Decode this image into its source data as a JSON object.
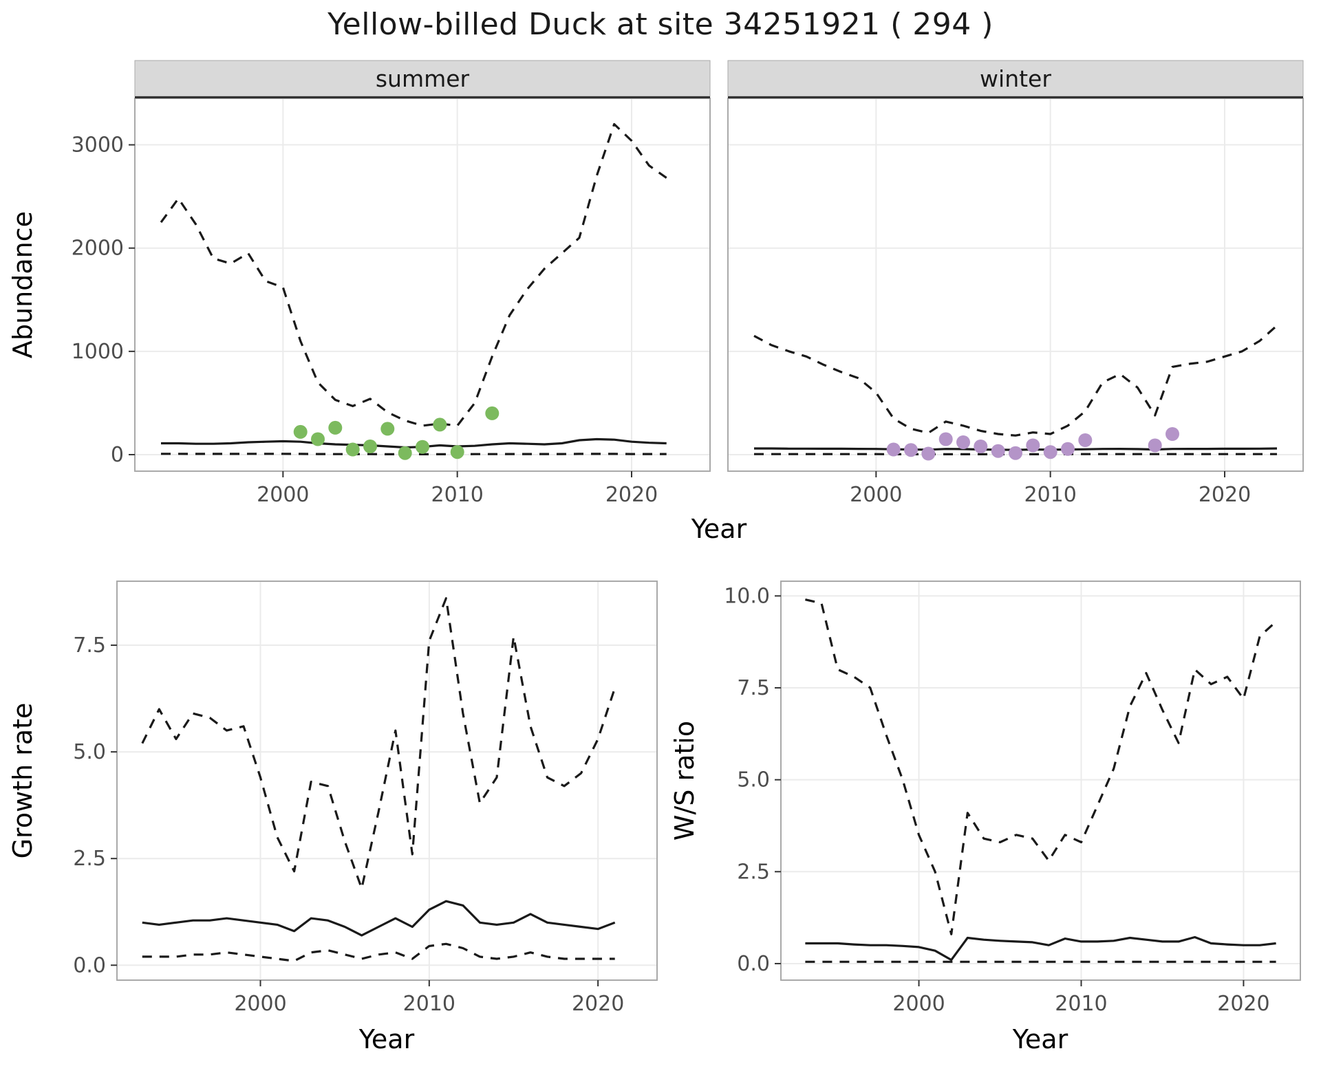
{
  "title": "Yellow-billed Duck at site 34251921 ( 294 )",
  "colors": {
    "line": "#1a1a1a",
    "grid": "#ebebeb",
    "panel_border": "#a9a9a9",
    "strip_bg": "#d9d9d9",
    "strip_border": "#333333",
    "axis_text": "#4d4d4d",
    "tick_mark": "#333333",
    "summer_points": "#7cba5e",
    "winter_points": "#b494c8"
  },
  "facet_row": {
    "xlabel": "Year",
    "ylabel": "Abundance"
  },
  "chart_data": [
    {
      "id": "abundance-summer",
      "type": "line",
      "facet_label": "summer",
      "xlabel": "Year",
      "ylabel": "Abundance",
      "xlim": [
        1991.5,
        2024.5
      ],
      "ylim": [
        -160,
        3450
      ],
      "xticks": [
        2000,
        2010,
        2020
      ],
      "xtick_labels": [
        "2000",
        "2010",
        "2020"
      ],
      "yticks": [
        0,
        1000,
        2000,
        3000
      ],
      "ytick_labels": [
        "0",
        "1000",
        "2000",
        "3000"
      ],
      "x": [
        1993,
        1994,
        1995,
        1996,
        1997,
        1998,
        1999,
        2000,
        2001,
        2002,
        2003,
        2004,
        2005,
        2006,
        2007,
        2008,
        2009,
        2010,
        2011,
        2012,
        2013,
        2014,
        2015,
        2016,
        2017,
        2018,
        2019,
        2020,
        2021,
        2022
      ],
      "series": [
        {
          "name": "upper-credible",
          "style": "dashed",
          "values": [
            2250,
            2480,
            2230,
            1900,
            1850,
            1950,
            1680,
            1620,
            1100,
            700,
            530,
            470,
            540,
            410,
            330,
            280,
            300,
            280,
            500,
            950,
            1350,
            1600,
            1800,
            1950,
            2100,
            2700,
            3200,
            3040,
            2800,
            2680
          ]
        },
        {
          "name": "median",
          "style": "solid",
          "values": [
            110,
            110,
            105,
            105,
            110,
            120,
            125,
            130,
            125,
            110,
            100,
            95,
            90,
            80,
            70,
            75,
            90,
            80,
            85,
            100,
            110,
            105,
            100,
            110,
            140,
            150,
            145,
            125,
            115,
            110
          ]
        },
        {
          "name": "lower-credible",
          "style": "dashed",
          "values": [
            8,
            8,
            7,
            7,
            7,
            8,
            8,
            8,
            7,
            6,
            5,
            5,
            5,
            4,
            4,
            4,
            4,
            4,
            5,
            5,
            6,
            6,
            6,
            6,
            7,
            7,
            7,
            6,
            6,
            6
          ]
        }
      ],
      "points": {
        "name": "observed-counts",
        "color_key": "summer_points",
        "x": [
          2001,
          2002,
          2003,
          2004,
          2005,
          2006,
          2007,
          2008,
          2009,
          2010,
          2012
        ],
        "y": [
          220,
          150,
          260,
          50,
          80,
          250,
          15,
          75,
          290,
          25,
          400
        ]
      }
    },
    {
      "id": "abundance-winter",
      "type": "line",
      "facet_label": "winter",
      "xlabel": "Year",
      "ylabel": "Abundance",
      "xlim": [
        1991.5,
        2024.5
      ],
      "ylim": [
        -160,
        3450
      ],
      "xticks": [
        2000,
        2010,
        2020
      ],
      "xtick_labels": [
        "2000",
        "2010",
        "2020"
      ],
      "yticks": [
        0,
        1000,
        2000,
        3000
      ],
      "ytick_labels": [
        "0",
        "1000",
        "2000",
        "3000"
      ],
      "x": [
        1993,
        1994,
        1995,
        1996,
        1997,
        1998,
        1999,
        2000,
        2001,
        2002,
        2003,
        2004,
        2005,
        2006,
        2007,
        2008,
        2009,
        2010,
        2011,
        2012,
        2013,
        2014,
        2015,
        2016,
        2017,
        2018,
        2019,
        2020,
        2021,
        2022,
        2023
      ],
      "series": [
        {
          "name": "upper-credible",
          "style": "dashed",
          "values": [
            1150,
            1060,
            1000,
            950,
            870,
            800,
            740,
            600,
            350,
            250,
            210,
            320,
            280,
            230,
            200,
            185,
            215,
            200,
            280,
            420,
            700,
            780,
            650,
            380,
            850,
            880,
            900,
            950,
            1000,
            1100,
            1250
          ]
        },
        {
          "name": "median",
          "style": "solid",
          "values": [
            60,
            60,
            58,
            58,
            57,
            57,
            56,
            55,
            52,
            50,
            48,
            55,
            54,
            50,
            48,
            46,
            50,
            48,
            50,
            52,
            55,
            56,
            54,
            50,
            55,
            56,
            56,
            57,
            57,
            58,
            60
          ]
        },
        {
          "name": "lower-credible",
          "style": "dashed",
          "values": [
            5,
            5,
            5,
            5,
            5,
            5,
            5,
            5,
            4,
            4,
            4,
            4,
            4,
            4,
            4,
            4,
            4,
            4,
            5,
            5,
            5,
            5,
            5,
            5,
            5,
            5,
            5,
            5,
            5,
            5,
            5
          ]
        }
      ],
      "points": {
        "name": "observed-counts",
        "color_key": "winter_points",
        "x": [
          2001,
          2002,
          2003,
          2004,
          2005,
          2006,
          2007,
          2008,
          2009,
          2010,
          2011,
          2012,
          2016,
          2017
        ],
        "y": [
          50,
          45,
          10,
          150,
          120,
          80,
          35,
          15,
          90,
          25,
          55,
          140,
          90,
          200
        ]
      }
    },
    {
      "id": "growth-rate",
      "type": "line",
      "facet_label": null,
      "xlabel": "Year",
      "ylabel": "Growth rate",
      "xlim": [
        1991.5,
        2023.5
      ],
      "ylim": [
        -0.35,
        9.0
      ],
      "xticks": [
        2000,
        2010,
        2020
      ],
      "xtick_labels": [
        "2000",
        "2010",
        "2020"
      ],
      "yticks": [
        0.0,
        2.5,
        5.0,
        7.5
      ],
      "ytick_labels": [
        "0.0",
        "2.5",
        "5.0",
        "7.5"
      ],
      "x": [
        1993,
        1994,
        1995,
        1996,
        1997,
        1998,
        1999,
        2000,
        2001,
        2002,
        2003,
        2004,
        2005,
        2006,
        2007,
        2008,
        2009,
        2010,
        2011,
        2012,
        2013,
        2014,
        2015,
        2016,
        2017,
        2018,
        2019,
        2020,
        2021
      ],
      "series": [
        {
          "name": "upper-credible",
          "style": "dashed",
          "values": [
            5.2,
            6.0,
            5.3,
            5.9,
            5.8,
            5.5,
            5.6,
            4.4,
            3.0,
            2.2,
            4.3,
            4.2,
            2.9,
            1.8,
            3.6,
            5.5,
            2.6,
            7.6,
            8.6,
            5.9,
            3.8,
            4.4,
            7.7,
            5.6,
            4.4,
            4.2,
            4.5,
            5.3,
            6.5
          ]
        },
        {
          "name": "median",
          "style": "solid",
          "values": [
            1.0,
            0.95,
            1.0,
            1.05,
            1.05,
            1.1,
            1.05,
            1.0,
            0.95,
            0.8,
            1.1,
            1.05,
            0.9,
            0.7,
            0.9,
            1.1,
            0.9,
            1.3,
            1.5,
            1.4,
            1.0,
            0.95,
            1.0,
            1.2,
            1.0,
            0.95,
            0.9,
            0.85,
            1.0
          ]
        },
        {
          "name": "lower-credible",
          "style": "dashed",
          "values": [
            0.2,
            0.2,
            0.2,
            0.25,
            0.25,
            0.3,
            0.25,
            0.2,
            0.15,
            0.1,
            0.3,
            0.35,
            0.25,
            0.15,
            0.25,
            0.3,
            0.15,
            0.45,
            0.5,
            0.4,
            0.2,
            0.15,
            0.2,
            0.3,
            0.2,
            0.15,
            0.15,
            0.15,
            0.15
          ]
        }
      ],
      "points": null
    },
    {
      "id": "ws-ratio",
      "type": "line",
      "facet_label": null,
      "xlabel": "Year",
      "ylabel": "W/S ratio",
      "xlim": [
        1991.5,
        2023.5
      ],
      "ylim": [
        -0.45,
        10.4
      ],
      "xticks": [
        2000,
        2010,
        2020
      ],
      "xtick_labels": [
        "2000",
        "2010",
        "2020"
      ],
      "yticks": [
        0.0,
        2.5,
        5.0,
        7.5,
        10.0
      ],
      "ytick_labels": [
        "0.0",
        "2.5",
        "5.0",
        "7.5",
        "10.0"
      ],
      "x": [
        1993,
        1994,
        1995,
        1996,
        1997,
        1998,
        1999,
        2000,
        2001,
        2002,
        2003,
        2004,
        2005,
        2006,
        2007,
        2008,
        2009,
        2010,
        2011,
        2012,
        2013,
        2014,
        2015,
        2016,
        2017,
        2018,
        2019,
        2020,
        2021,
        2022
      ],
      "series": [
        {
          "name": "upper-credible",
          "style": "dashed",
          "values": [
            9.9,
            9.8,
            8.0,
            7.8,
            7.5,
            6.2,
            5.0,
            3.5,
            2.5,
            0.8,
            4.1,
            3.4,
            3.3,
            3.5,
            3.4,
            2.8,
            3.5,
            3.3,
            4.3,
            5.3,
            7.0,
            7.9,
            6.9,
            6.0,
            8.0,
            7.6,
            7.8,
            7.2,
            8.9,
            9.3
          ]
        },
        {
          "name": "median",
          "style": "solid",
          "values": [
            0.55,
            0.55,
            0.55,
            0.52,
            0.5,
            0.5,
            0.48,
            0.45,
            0.35,
            0.1,
            0.7,
            0.65,
            0.62,
            0.6,
            0.58,
            0.5,
            0.68,
            0.6,
            0.6,
            0.62,
            0.7,
            0.65,
            0.6,
            0.6,
            0.72,
            0.55,
            0.52,
            0.5,
            0.5,
            0.55
          ]
        },
        {
          "name": "lower-credible",
          "style": "dashed",
          "values": [
            0.05,
            0.05,
            0.05,
            0.05,
            0.05,
            0.05,
            0.05,
            0.05,
            0.05,
            0.05,
            0.05,
            0.05,
            0.05,
            0.05,
            0.05,
            0.05,
            0.05,
            0.05,
            0.05,
            0.05,
            0.05,
            0.05,
            0.05,
            0.05,
            0.05,
            0.05,
            0.05,
            0.05,
            0.05,
            0.05
          ]
        }
      ],
      "points": null
    }
  ]
}
